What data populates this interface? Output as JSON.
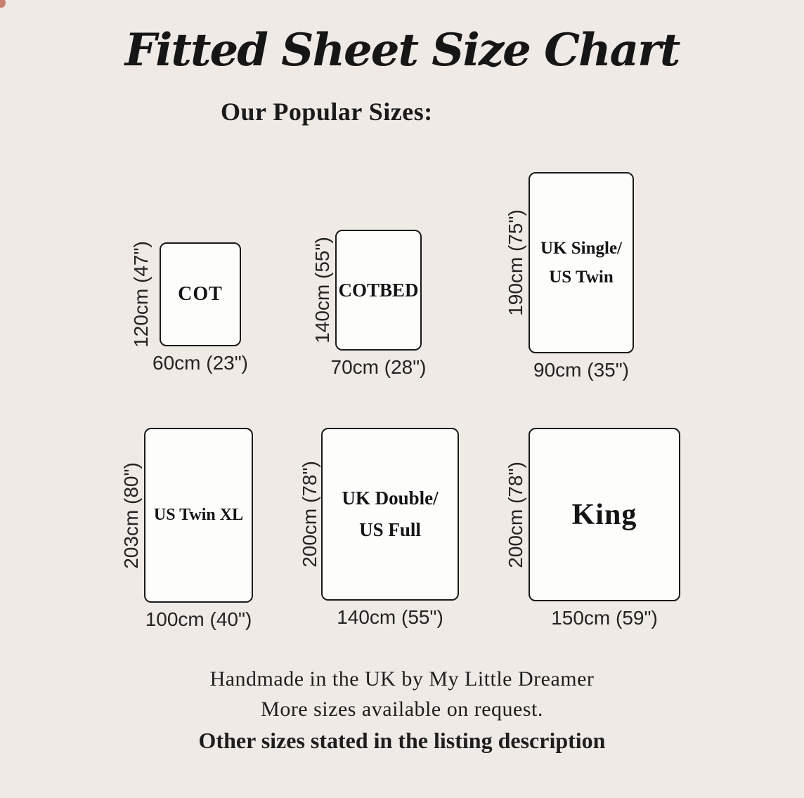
{
  "page": {
    "title": "Fitted Sheet Size Chart",
    "subtitle": "Our Popular Sizes:",
    "background_color": "#EFEAE5",
    "ink_color": "#1B1B1B",
    "sheet_fill_color": "#FDFDFB",
    "corner_artifact_color": "#C97F72"
  },
  "sizes": [
    {
      "name": "COT",
      "width_label": "60cm (23\")",
      "height_label": "120cm (47\")",
      "width_cm": 60,
      "width_in": 23,
      "height_cm": 120,
      "height_in": 47
    },
    {
      "name": "COTBED",
      "width_label": "70cm (28\")",
      "height_label": "140cm (55\")",
      "width_cm": 70,
      "width_in": 28,
      "height_cm": 140,
      "height_in": 55
    },
    {
      "name": "UK Single/\nUS Twin",
      "width_label": "90cm (35\")",
      "height_label": "190cm (75\")",
      "width_cm": 90,
      "width_in": 35,
      "height_cm": 190,
      "height_in": 75
    },
    {
      "name": "US Twin XL",
      "width_label": "100cm (40\")",
      "height_label": "203cm (80\")",
      "width_cm": 100,
      "width_in": 40,
      "height_cm": 203,
      "height_in": 80
    },
    {
      "name": "UK Double/\nUS Full",
      "width_label": "140cm (55\")",
      "height_label": "200cm (78\")",
      "width_cm": 140,
      "width_in": 55,
      "height_cm": 200,
      "height_in": 78
    },
    {
      "name": "King",
      "width_label": "150cm (59\")",
      "height_label": "200cm (78\")",
      "width_cm": 150,
      "width_in": 59,
      "height_cm": 200,
      "height_in": 78
    }
  ],
  "footer": {
    "line1": "Handmade in the UK by My Little Dreamer",
    "line2": "More sizes available on request.",
    "line3": "Other sizes stated in the listing description"
  }
}
